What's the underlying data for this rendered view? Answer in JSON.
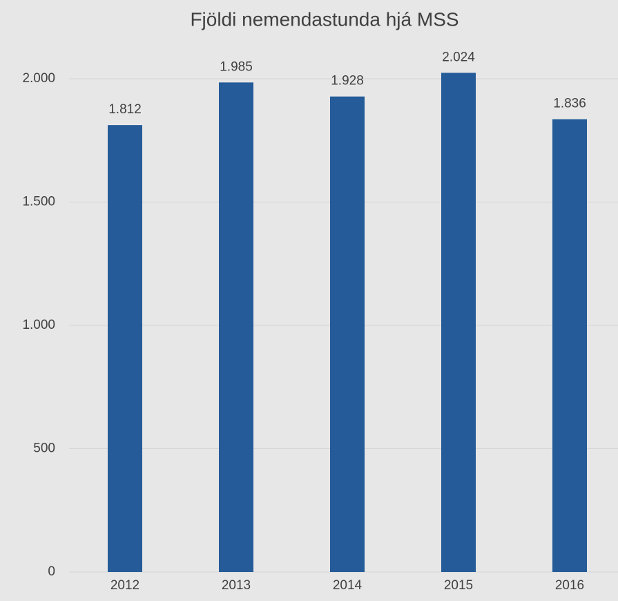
{
  "chart_data": {
    "type": "bar",
    "title": "Fjöldi nemendastunda hjá MSS",
    "categories": [
      "2012",
      "2013",
      "2014",
      "2015",
      "2016"
    ],
    "values": [
      1812,
      1985,
      1928,
      2024,
      1836
    ],
    "value_labels": [
      "1.812",
      "1.985",
      "1.928",
      "2.024",
      "1.836"
    ],
    "color": "#245b98",
    "ylim": [
      0,
      2200
    ],
    "yticks": [
      0,
      500,
      {
        "value": 1000,
        "label": "1.000"
      },
      {
        "value": 1500,
        "label": "1.500"
      },
      {
        "value": 2000,
        "label": "2.000"
      }
    ],
    "grid": true
  }
}
